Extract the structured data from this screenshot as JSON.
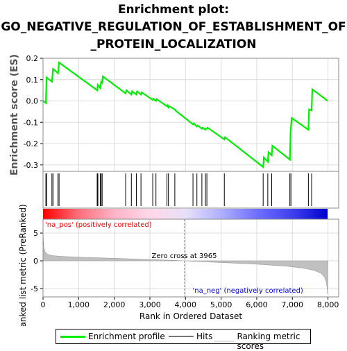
{
  "title_lines": [
    "Enrichment plot:",
    "GO_NEGATIVE_REGULATION_OF_ESTABLISHMENT_OF",
    "_PROTEIN_LOCALIZATION"
  ],
  "colors": {
    "enrichment_line": "#00ee00",
    "hits": "#000000",
    "ranking": "#c0c0c0",
    "grid": "#dcdcdc",
    "pos_label": "#ff0000",
    "neg_label": "#0000ff"
  },
  "chart_data": [
    {
      "type": "line",
      "name": "enrichment-profile",
      "ylabel": "Enrichment score (ES)",
      "xlim": [
        0,
        8300
      ],
      "ylim": [
        -0.33,
        0.2
      ],
      "yticks": [
        0.2,
        0.1,
        0.0,
        -0.1,
        -0.2,
        -0.3
      ],
      "ytick_labels": [
        "0.2",
        "0.1",
        "0.0",
        "-0.1",
        "-0.2",
        "-0.3"
      ],
      "grid": true,
      "series": [
        {
          "x": [
            0,
            80,
            100,
            250,
            280,
            420,
            450,
            1520,
            1540,
            1610,
            1630,
            1660,
            1680,
            2320,
            2340,
            2480,
            2500,
            2620,
            2640,
            2750,
            2770,
            3080,
            3100,
            3170,
            3190,
            3480,
            3500,
            3520,
            3540,
            3700,
            3720,
            4210,
            4230,
            4320,
            4340,
            4460,
            4480,
            4560,
            4580,
            4600,
            4620,
            5090,
            5110,
            6180,
            6200,
            6310,
            6330,
            6420,
            6440,
            6930,
            6950,
            6960,
            6980,
            7450,
            7470,
            7540,
            7560,
            7990
          ],
          "y": [
            0.0,
            -0.01,
            0.11,
            0.09,
            0.15,
            0.13,
            0.18,
            0.05,
            0.075,
            0.06,
            0.09,
            0.085,
            0.115,
            0.035,
            0.05,
            0.03,
            0.045,
            0.03,
            0.045,
            0.03,
            0.04,
            0.005,
            0.01,
            0.0,
            0.008,
            -0.025,
            -0.02,
            -0.03,
            -0.025,
            -0.04,
            -0.045,
            -0.11,
            -0.105,
            -0.12,
            -0.115,
            -0.13,
            -0.125,
            -0.135,
            -0.13,
            -0.13,
            -0.125,
            -0.18,
            -0.17,
            -0.31,
            -0.265,
            -0.285,
            -0.24,
            -0.255,
            -0.21,
            -0.275,
            -0.145,
            -0.125,
            -0.08,
            -0.135,
            -0.04,
            -0.045,
            0.055,
            0.0
          ]
        }
      ]
    },
    {
      "type": "scatter",
      "name": "hits",
      "hit_positions": [
        80,
        100,
        250,
        280,
        420,
        450,
        1520,
        1540,
        1610,
        1630,
        1660,
        2320,
        2480,
        2620,
        2750,
        3080,
        3170,
        3480,
        3520,
        3700,
        4210,
        4320,
        4460,
        4560,
        4600,
        5090,
        6180,
        6310,
        6420,
        6930,
        6960,
        7450,
        7540
      ]
    },
    {
      "type": "area",
      "name": "ranking-metric",
      "xlabel": "Rank in Ordered Dataset",
      "ylabel": "Ranked list metric (PreRanked)",
      "xlim": [
        0,
        8300
      ],
      "ylim": [
        -6.5,
        7.5
      ],
      "yticks": [
        5,
        0,
        -5
      ],
      "ytick_labels": [
        "5",
        "0",
        "-5"
      ],
      "xticks": [
        0,
        1000,
        2000,
        3000,
        4000,
        5000,
        6000,
        7000,
        8000
      ],
      "xtick_labels": [
        "0",
        "1,000",
        "2,000",
        "3,000",
        "4,000",
        "5,000",
        "6,000",
        "7,000",
        "8,000"
      ],
      "x": [
        0,
        20,
        60,
        120,
        250,
        500,
        1000,
        2000,
        3000,
        3965,
        5000,
        6000,
        6800,
        7300,
        7600,
        7800,
        7900,
        7950,
        7980,
        7990
      ],
      "y": [
        5.0,
        2.5,
        1.6,
        1.2,
        0.95,
        0.8,
        0.65,
        0.45,
        0.25,
        0.0,
        -0.3,
        -0.6,
        -0.95,
        -1.3,
        -1.7,
        -2.2,
        -2.9,
        -3.8,
        -5.0,
        -6.0
      ],
      "annotations": {
        "zero_cross": "Zero cross at 3965",
        "zero_cross_x": 3965,
        "pos_label": "'na_pos' (positively correlated)",
        "neg_label": "'na_neg' (negatively correlated)"
      },
      "color_bar_stops": [
        "#ff0000",
        "#ff6f7a",
        "#ffb3c8",
        "#ffd8e8",
        "#e8e0f8",
        "#b0b0ff",
        "#7070ff",
        "#4040f0",
        "#0000cc"
      ]
    }
  ],
  "legend": {
    "items": [
      {
        "label": "Enrichment profile"
      },
      {
        "label": "Hits"
      },
      {
        "label": "Ranking metric scores"
      }
    ]
  }
}
